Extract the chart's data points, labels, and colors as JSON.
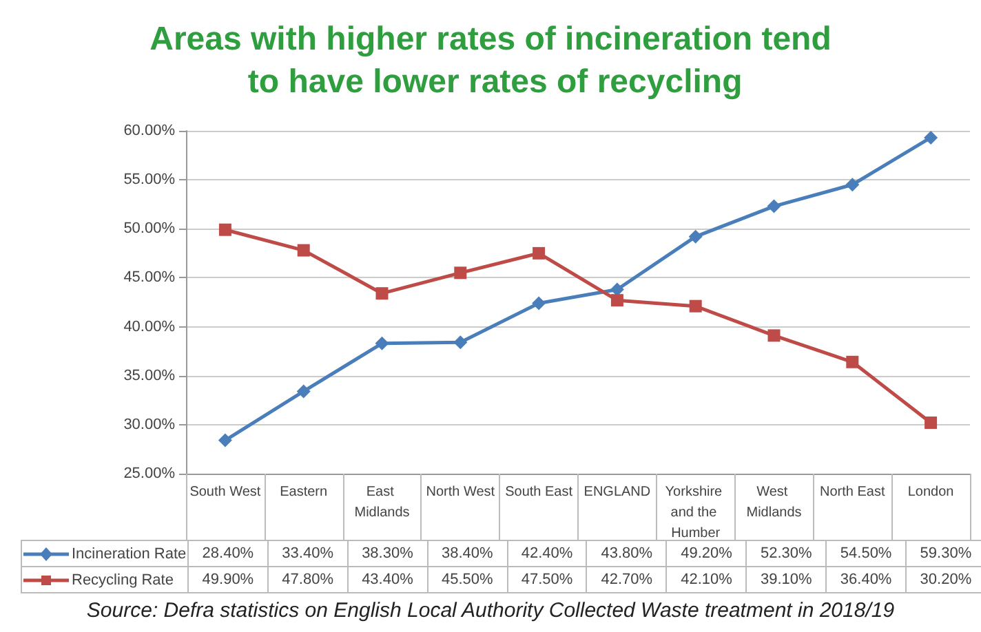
{
  "chart_data": {
    "type": "line",
    "title": "Areas with higher rates of incineration tend to have lower rates of recycling",
    "categories": [
      "South West",
      "Eastern",
      "East Midlands",
      "North West",
      "South East",
      "ENGLAND",
      "Yorkshire and the Humber",
      "West Midlands",
      "North East",
      "London"
    ],
    "series": [
      {
        "name": "Incineration Rate",
        "color": "#4a7ebb",
        "marker": "diamond",
        "values": [
          28.4,
          33.4,
          38.3,
          38.4,
          42.4,
          43.8,
          49.2,
          52.3,
          54.5,
          59.3
        ],
        "value_labels": [
          "28.40%",
          "33.40%",
          "38.30%",
          "38.40%",
          "42.40%",
          "43.80%",
          "49.20%",
          "52.30%",
          "54.50%",
          "59.30%"
        ]
      },
      {
        "name": "Recycling Rate",
        "color": "#be4b48",
        "marker": "square",
        "values": [
          49.9,
          47.8,
          43.4,
          45.5,
          47.5,
          42.7,
          42.1,
          39.1,
          36.4,
          30.2
        ],
        "value_labels": [
          "49.90%",
          "47.80%",
          "43.40%",
          "45.50%",
          "47.50%",
          "42.70%",
          "42.10%",
          "39.10%",
          "36.40%",
          "30.20%"
        ]
      }
    ],
    "ylim": [
      25,
      60
    ],
    "yticks": [
      {
        "value": 25,
        "label": "25.00%"
      },
      {
        "value": 30,
        "label": "30.00%"
      },
      {
        "value": 35,
        "label": "35.00%"
      },
      {
        "value": 40,
        "label": "40.00%"
      },
      {
        "value": 45,
        "label": "45.00%"
      },
      {
        "value": 50,
        "label": "50.00%"
      },
      {
        "value": 55,
        "label": "55.00%"
      },
      {
        "value": 60,
        "label": "60.00%"
      }
    ],
    "grid": "y",
    "legend": "bottom",
    "line_style": "solid",
    "annotations": [
      "Source: Defra statistics on English Local Authority Collected Waste treatment in 2018/19"
    ]
  }
}
